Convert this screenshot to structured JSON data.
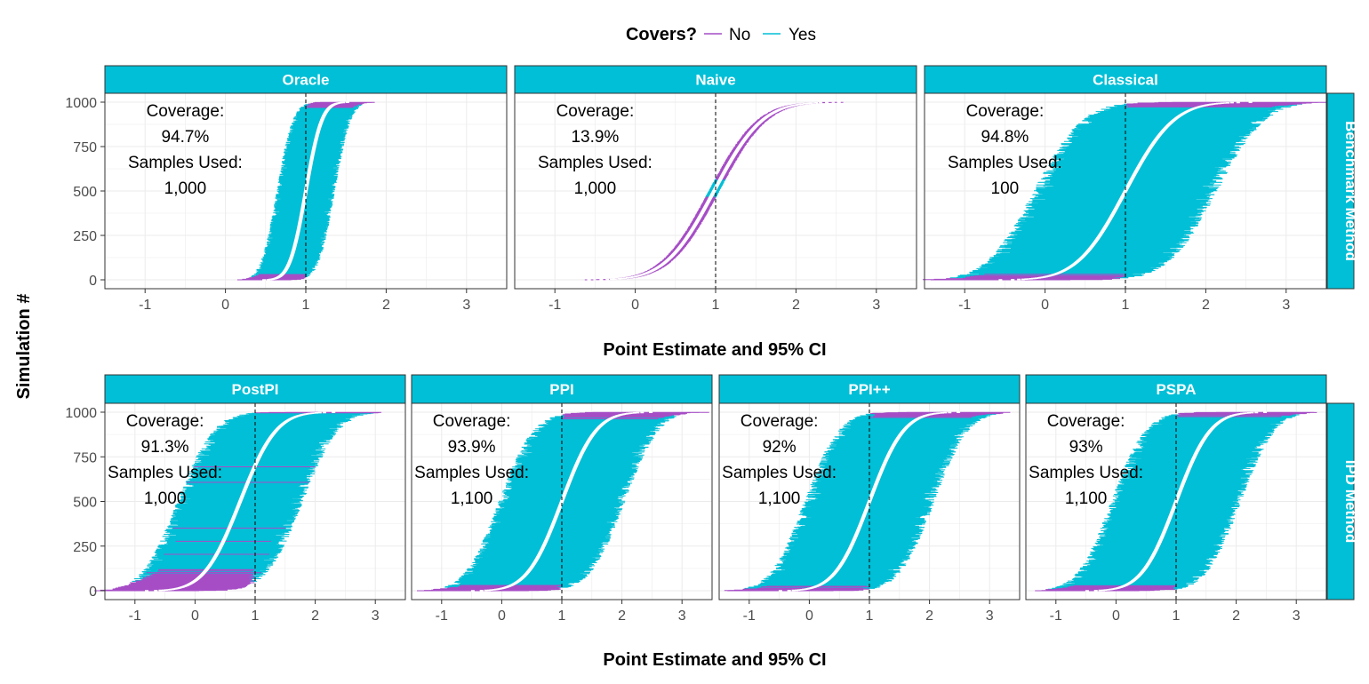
{
  "chart_data": {
    "type": "interval",
    "ylabel": "Simulation #",
    "legend": {
      "title": "Covers?",
      "position": "top",
      "items": [
        {
          "label": "No",
          "color": "#A64DC6"
        },
        {
          "label": "Yes",
          "color": "#00BFD6"
        }
      ]
    },
    "colors": {
      "no": "#A64DC6",
      "yes": "#00BFD6",
      "strip": "#00BFD6",
      "estimate": "#ffffff"
    },
    "truth": 1,
    "ylim": [
      0,
      1000
    ],
    "yticks": [
      "0",
      "250",
      "500",
      "750",
      "1000"
    ],
    "rows": [
      {
        "strip": "Benchmark Method",
        "xlabel": "Point Estimate and 95% CI",
        "xlim": [
          -1.5,
          3.5
        ],
        "xticks": [
          "-1",
          "0",
          "1",
          "2",
          "3"
        ],
        "panels": [
          {
            "title": "Oracle",
            "coverage_label": "Coverage:",
            "coverage": "94.7%",
            "samples_label": "Samples Used:",
            "samples": "1,000",
            "center": 1.0,
            "est_spread": 0.35,
            "half_width": 0.32,
            "coverage_rate": 0.947
          },
          {
            "title": "Naive",
            "coverage_label": "Coverage:",
            "coverage": "13.9%",
            "samples_label": "Samples Used:",
            "samples": "1,000",
            "center": 0.98,
            "est_spread": 1.05,
            "half_width": 0.06,
            "coverage_rate": 0.139
          },
          {
            "title": "Classical",
            "coverage_label": "Coverage:",
            "coverage": "94.8%",
            "samples_label": "Samples Used:",
            "samples": "100",
            "center": 1.0,
            "est_spread": 1.05,
            "half_width": 1.0,
            "coverage_rate": 0.948
          }
        ]
      },
      {
        "strip": "IPD Method",
        "xlabel": "Point Estimate and 95% CI",
        "xlim": [
          -1.5,
          3.5
        ],
        "xticks": [
          "-1",
          "0",
          "1",
          "2",
          "3"
        ],
        "panels": [
          {
            "title": "PostPI",
            "coverage_label": "Coverage:",
            "coverage": "91.3%",
            "samples_label": "Samples Used:",
            "samples": "1,000",
            "center": 0.75,
            "est_spread": 1.05,
            "half_width": 0.92,
            "coverage_rate": 0.913
          },
          {
            "title": "PPI",
            "coverage_label": "Coverage:",
            "coverage": "93.9%",
            "samples_label": "Samples Used:",
            "samples": "1,100",
            "center": 1.0,
            "est_spread": 1.0,
            "half_width": 0.92,
            "coverage_rate": 0.939
          },
          {
            "title": "PPI++",
            "coverage_label": "Coverage:",
            "coverage": "92%",
            "samples_label": "Samples Used:",
            "samples": "1,100",
            "center": 1.0,
            "est_spread": 1.0,
            "half_width": 0.95,
            "coverage_rate": 0.92
          },
          {
            "title": "PSPA",
            "coverage_label": "Coverage:",
            "coverage": "93%",
            "samples_label": "Samples Used:",
            "samples": "1,100",
            "center": 1.0,
            "est_spread": 1.0,
            "half_width": 0.95,
            "coverage_rate": 0.93
          }
        ]
      }
    ]
  }
}
